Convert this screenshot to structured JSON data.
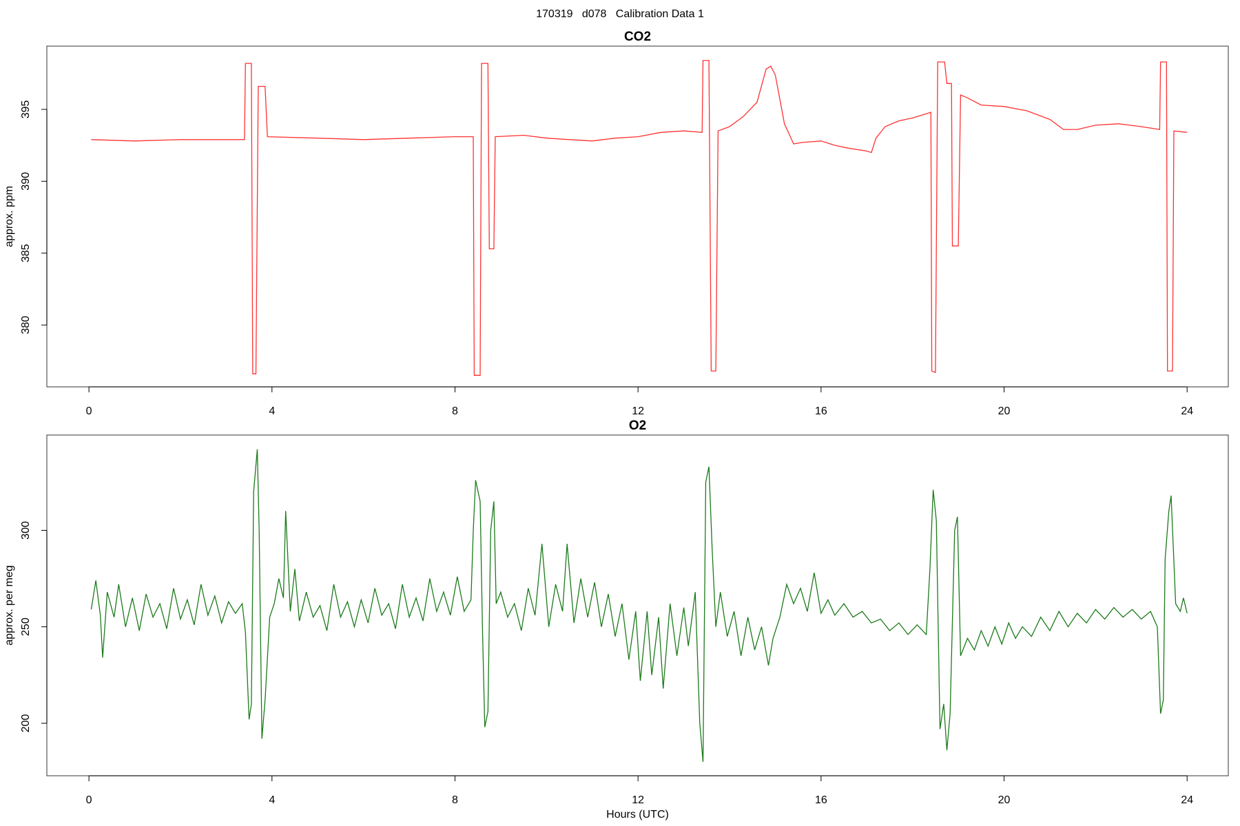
{
  "suptitle": "170319   d078   Calibration Data 1",
  "chart_data": [
    {
      "type": "line",
      "title": "CO2",
      "ylabel": "approx. ppm",
      "color": "#ff3030",
      "xlim": [
        -0.92,
        24.9
      ],
      "xticks": [
        0,
        4,
        8,
        12,
        16,
        20,
        24
      ],
      "ylim": [
        375.7,
        399.4
      ],
      "yticks": [
        380,
        385,
        390,
        395
      ],
      "x": [
        0.05,
        1,
        2,
        3,
        3.4,
        3.42,
        3.55,
        3.58,
        3.65,
        3.7,
        3.85,
        3.9,
        5,
        6,
        7,
        8,
        8.4,
        8.42,
        8.55,
        8.58,
        8.72,
        8.75,
        8.85,
        8.88,
        9.5,
        10,
        10.5,
        11,
        11.5,
        12,
        12.5,
        13,
        13.4,
        13.42,
        13.55,
        13.6,
        13.7,
        13.75,
        14,
        14.3,
        14.6,
        14.8,
        14.9,
        15.0,
        15.2,
        15.4,
        15.6,
        16,
        16.3,
        16.6,
        17,
        17.1,
        17.2,
        17.4,
        17.7,
        18,
        18.3,
        18.4,
        18.42,
        18.5,
        18.55,
        18.7,
        18.75,
        18.85,
        18.87,
        19.0,
        19.05,
        19.2,
        19.5,
        20,
        20.5,
        21,
        21.3,
        21.6,
        22,
        22.5,
        23,
        23.4,
        23.42,
        23.55,
        23.57,
        23.68,
        23.71,
        24.0
      ],
      "values": [
        392.9,
        392.8,
        392.9,
        392.9,
        392.9,
        398.2,
        398.2,
        376.6,
        376.6,
        396.6,
        396.6,
        393.1,
        393.0,
        392.9,
        393.0,
        393.1,
        393.1,
        376.5,
        376.5,
        398.2,
        398.2,
        385.3,
        385.3,
        393.1,
        393.2,
        393.0,
        392.9,
        392.8,
        393.0,
        393.1,
        393.4,
        393.5,
        393.4,
        398.4,
        398.4,
        376.8,
        376.8,
        393.5,
        393.8,
        394.5,
        395.5,
        397.8,
        398.0,
        397.4,
        394.0,
        392.6,
        392.7,
        392.8,
        392.5,
        392.3,
        392.1,
        392.0,
        393.0,
        393.8,
        394.2,
        394.4,
        394.7,
        394.8,
        376.8,
        376.7,
        398.3,
        398.3,
        396.8,
        396.8,
        385.5,
        385.5,
        396.0,
        395.8,
        395.3,
        395.2,
        394.9,
        394.3,
        393.6,
        393.6,
        393.9,
        394.0,
        393.8,
        393.6,
        398.3,
        398.3,
        376.8,
        376.8,
        393.5,
        393.4
      ]
    },
    {
      "type": "line",
      "title": "O2",
      "ylabel": "approx. per meg",
      "xlabel": "Hours (UTC)",
      "color": "#1a7a1a",
      "xlim": [
        -0.92,
        24.9
      ],
      "xticks": [
        0,
        4,
        8,
        12,
        16,
        20,
        24
      ],
      "ylim": [
        172.8,
        349.4
      ],
      "yticks": [
        200,
        250,
        300
      ],
      "x": [
        0.05,
        0.15,
        0.25,
        0.3,
        0.4,
        0.55,
        0.65,
        0.8,
        0.95,
        1.1,
        1.25,
        1.4,
        1.55,
        1.7,
        1.85,
        2.0,
        2.15,
        2.3,
        2.45,
        2.6,
        2.75,
        2.9,
        3.05,
        3.2,
        3.35,
        3.42,
        3.5,
        3.55,
        3.6,
        3.68,
        3.72,
        3.78,
        3.85,
        3.95,
        4.05,
        4.15,
        4.25,
        4.3,
        4.4,
        4.5,
        4.6,
        4.75,
        4.9,
        5.05,
        5.2,
        5.35,
        5.5,
        5.65,
        5.8,
        5.95,
        6.1,
        6.25,
        6.4,
        6.55,
        6.7,
        6.85,
        7.0,
        7.15,
        7.3,
        7.45,
        7.6,
        7.75,
        7.9,
        8.05,
        8.2,
        8.35,
        8.4,
        8.45,
        8.55,
        8.6,
        8.65,
        8.72,
        8.78,
        8.85,
        8.9,
        9.0,
        9.15,
        9.3,
        9.45,
        9.6,
        9.75,
        9.9,
        10.05,
        10.2,
        10.35,
        10.45,
        10.6,
        10.75,
        10.9,
        11.05,
        11.2,
        11.35,
        11.5,
        11.65,
        11.8,
        11.95,
        12.05,
        12.2,
        12.3,
        12.45,
        12.55,
        12.7,
        12.85,
        13.0,
        13.1,
        13.25,
        13.35,
        13.42,
        13.48,
        13.55,
        13.62,
        13.7,
        13.8,
        13.95,
        14.1,
        14.25,
        14.4,
        14.55,
        14.7,
        14.85,
        14.95,
        15.1,
        15.25,
        15.4,
        15.55,
        15.7,
        15.85,
        16.0,
        16.15,
        16.3,
        16.5,
        16.7,
        16.9,
        17.1,
        17.3,
        17.5,
        17.7,
        17.9,
        18.1,
        18.3,
        18.38,
        18.45,
        18.52,
        18.6,
        18.68,
        18.75,
        18.82,
        18.92,
        18.98,
        19.05,
        19.2,
        19.35,
        19.5,
        19.65,
        19.8,
        19.95,
        20.1,
        20.25,
        20.4,
        20.6,
        20.8,
        21.0,
        21.2,
        21.4,
        21.6,
        21.8,
        22.0,
        22.2,
        22.4,
        22.6,
        22.8,
        23.0,
        23.2,
        23.35,
        23.42,
        23.48,
        23.52,
        23.6,
        23.65,
        23.75,
        23.85,
        23.92,
        24.0
      ],
      "values": [
        259,
        274,
        256,
        234,
        268,
        255,
        272,
        250,
        265,
        248,
        267,
        255,
        262,
        249,
        270,
        254,
        264,
        251,
        272,
        256,
        266,
        252,
        263,
        257,
        262,
        247,
        202,
        210,
        320,
        342,
        300,
        192,
        212,
        255,
        262,
        275,
        265,
        310,
        258,
        280,
        253,
        268,
        255,
        261,
        248,
        272,
        255,
        263,
        250,
        264,
        252,
        270,
        256,
        262,
        249,
        272,
        255,
        265,
        253,
        275,
        258,
        268,
        256,
        276,
        258,
        264,
        300,
        326,
        315,
        250,
        198,
        206,
        300,
        315,
        262,
        268,
        255,
        262,
        248,
        270,
        256,
        293,
        250,
        272,
        258,
        293,
        252,
        275,
        255,
        273,
        250,
        267,
        245,
        262,
        233,
        258,
        222,
        258,
        225,
        255,
        218,
        262,
        235,
        260,
        240,
        268,
        200,
        180,
        325,
        333,
        290,
        250,
        268,
        245,
        258,
        235,
        255,
        238,
        250,
        230,
        244,
        255,
        272,
        262,
        270,
        258,
        278,
        257,
        264,
        256,
        262,
        255,
        258,
        252,
        254,
        248,
        252,
        246,
        251,
        246,
        280,
        321,
        305,
        197,
        210,
        186,
        205,
        300,
        307,
        235,
        244,
        238,
        248,
        240,
        250,
        241,
        252,
        244,
        250,
        245,
        255,
        248,
        258,
        250,
        257,
        252,
        259,
        254,
        260,
        255,
        259,
        254,
        258,
        250,
        205,
        212,
        285,
        310,
        318,
        262,
        258,
        265,
        257
      ]
    }
  ]
}
